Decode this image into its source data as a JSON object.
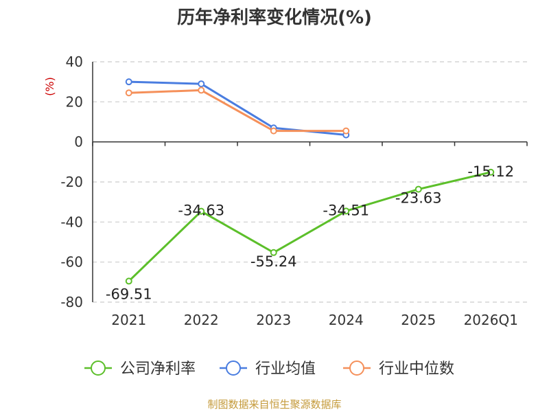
{
  "chart_data": {
    "type": "line",
    "title": "历年净利率变化情况(%)",
    "ylabel": "(%)",
    "xlabel": "",
    "categories": [
      "2021",
      "2022",
      "2023",
      "2024",
      "2025",
      "2026Q1"
    ],
    "ylim": [
      -80,
      40
    ],
    "yticks": [
      40,
      20,
      0,
      -20,
      -40,
      -60,
      -80
    ],
    "grid": true,
    "legend_position": "bottom",
    "series": [
      {
        "name": "公司净利率",
        "color": "#5cbf2a",
        "values": [
          -69.51,
          -34.63,
          -55.24,
          -34.51,
          -23.63,
          -15.12
        ],
        "labels": [
          "-69.51",
          "-34.63",
          "-55.24",
          "-34.51",
          "-23.63",
          "-15.12"
        ]
      },
      {
        "name": "行业均值",
        "color": "#4a7de0",
        "values": [
          30.0,
          29.0,
          7.0,
          3.5,
          null,
          null
        ]
      },
      {
        "name": "行业中位数",
        "color": "#f5905a",
        "values": [
          24.5,
          25.8,
          5.5,
          5.5,
          null,
          null
        ]
      }
    ]
  },
  "source": "制图数据来自恒生聚源数据库"
}
